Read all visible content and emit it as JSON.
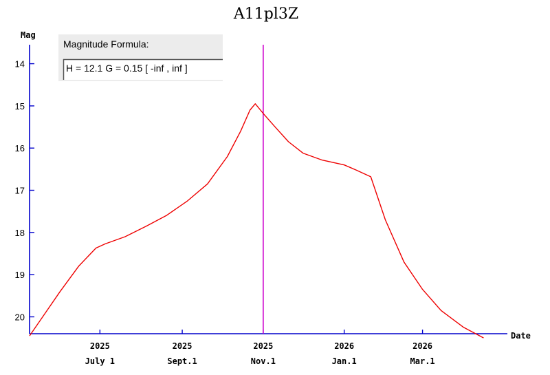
{
  "chart_data": {
    "type": "line",
    "title": "A11pl3Z",
    "xlabel": "Date",
    "ylabel": "Mag",
    "y_inverted": true,
    "ylim": [
      20.4,
      13.55
    ],
    "xlim": [
      "2025-05-09",
      "2026-04-22"
    ],
    "x_ticks": [
      {
        "date": "2025-07-01",
        "year": "2025",
        "label": "July 1"
      },
      {
        "date": "2025-09-01",
        "year": "2025",
        "label": "Sept.1"
      },
      {
        "date": "2025-11-01",
        "year": "2025",
        "label": "Nov.1"
      },
      {
        "date": "2026-01-01",
        "year": "2026",
        "label": "Jan.1"
      },
      {
        "date": "2026-03-01",
        "year": "2026",
        "label": "Mar.1"
      }
    ],
    "y_ticks": [
      14,
      15,
      16,
      17,
      18,
      19,
      20
    ],
    "marker_date": "2025-11-01",
    "colors": {
      "series": "#ee0000",
      "marker": "#cc00cc",
      "axis": "#0000cc"
    },
    "series": [
      {
        "x": [
          "2025-05-09",
          "2025-05-20",
          "2025-06-01",
          "2025-06-15",
          "2025-06-28",
          "2025-07-05",
          "2025-07-20",
          "2025-08-05",
          "2025-08-20",
          "2025-09-05",
          "2025-09-20",
          "2025-10-05",
          "2025-10-15",
          "2025-10-22",
          "2025-10-26",
          "2025-11-01",
          "2025-11-10",
          "2025-11-20",
          "2025-12-01",
          "2025-12-15",
          "2026-01-01",
          "2026-01-10",
          "2026-01-21",
          "2026-02-01",
          "2026-02-15",
          "2026-03-01",
          "2026-03-15",
          "2026-04-01",
          "2026-04-16"
        ],
        "y": [
          20.45,
          19.95,
          19.4,
          18.8,
          18.37,
          18.27,
          18.1,
          17.85,
          17.6,
          17.25,
          16.85,
          16.2,
          15.6,
          15.1,
          14.95,
          15.18,
          15.5,
          15.85,
          16.12,
          16.28,
          16.4,
          16.52,
          16.68,
          17.7,
          18.7,
          19.35,
          19.85,
          20.25,
          20.5
        ]
      }
    ]
  },
  "formula_box": {
    "heading": "Magnitude Formula:",
    "text": "H = 12.1   G = 0.15   [ -inf ,  inf ]"
  }
}
